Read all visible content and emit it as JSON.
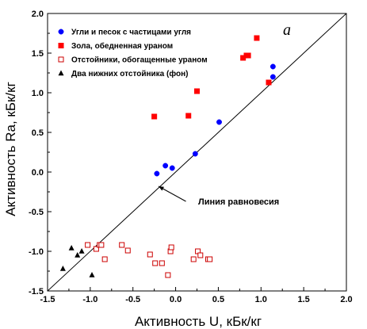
{
  "chart_data": {
    "type": "scatter",
    "panel_label": "a",
    "xlabel": "Активность U, кБк/кг",
    "ylabel": "Активность Ra, кБк/кг",
    "xlim": [
      -1.5,
      2.0
    ],
    "ylim": [
      -1.5,
      2.0
    ],
    "xticks": [
      "-1.5",
      "-1.0",
      "-0.5",
      "0.0",
      "0.5",
      "1.0",
      "1.5",
      "2.0"
    ],
    "yticks": [
      "-1.5",
      "-1.0",
      "-0.5",
      "0.0",
      "0.5",
      "1.0",
      "1.5",
      "2.0"
    ],
    "xtick_values": [
      -1.5,
      -1.0,
      -0.5,
      0.0,
      0.5,
      1.0,
      1.5,
      2.0
    ],
    "ytick_values": [
      -1.5,
      -1.0,
      -0.5,
      0.0,
      0.5,
      1.0,
      1.5,
      2.0
    ],
    "grid": false,
    "legend_position": "top-left",
    "reference_line": {
      "label": "Линия равновесия",
      "x": [
        -1.5,
        2.0
      ],
      "y": [
        -1.5,
        2.0
      ]
    },
    "annotation_arrow": {
      "from": [
        0.12,
        -0.37
      ],
      "to": [
        -0.2,
        -0.18
      ]
    },
    "series": [
      {
        "name": "Угли и песок с частицами угля",
        "marker": "circle",
        "filled": true,
        "color": "#0000ff",
        "x": [
          -0.22,
          -0.12,
          -0.04,
          0.23,
          0.51,
          1.14,
          1.14
        ],
        "y": [
          -0.02,
          0.08,
          0.05,
          0.23,
          0.63,
          1.2,
          1.33
        ]
      },
      {
        "name": "Зола, обедненная ураном",
        "marker": "square",
        "filled": true,
        "color": "#ff0000",
        "x": [
          -0.25,
          0.15,
          0.25,
          0.79,
          0.83,
          0.85,
          0.95,
          1.09
        ],
        "y": [
          0.7,
          0.71,
          1.02,
          1.44,
          1.47,
          1.47,
          1.69,
          1.13
        ]
      },
      {
        "name": "Отстойники, обогащенные ураном",
        "marker": "square",
        "filled": false,
        "color": "#cc0000",
        "x": [
          -1.03,
          -0.93,
          -0.89,
          -0.87,
          -0.83,
          -0.63,
          -0.56,
          -0.3,
          -0.24,
          -0.16,
          -0.09,
          -0.06,
          -0.05,
          0.21,
          0.26,
          0.29,
          0.38,
          0.4
        ],
        "y": [
          -0.92,
          -0.97,
          -0.92,
          -0.92,
          -1.1,
          -0.92,
          -0.99,
          -1.04,
          -1.15,
          -1.15,
          -1.3,
          -1.0,
          -0.95,
          -1.1,
          -1.0,
          -1.05,
          -1.1,
          -1.1
        ]
      },
      {
        "name": "Два нижних отстойника (фон)",
        "marker": "triangle",
        "filled": true,
        "color": "#000000",
        "x": [
          -1.32,
          -1.22,
          -1.15,
          -1.1,
          -0.98
        ],
        "y": [
          -1.22,
          -0.96,
          -1.05,
          -1.0,
          -1.3
        ]
      }
    ]
  }
}
